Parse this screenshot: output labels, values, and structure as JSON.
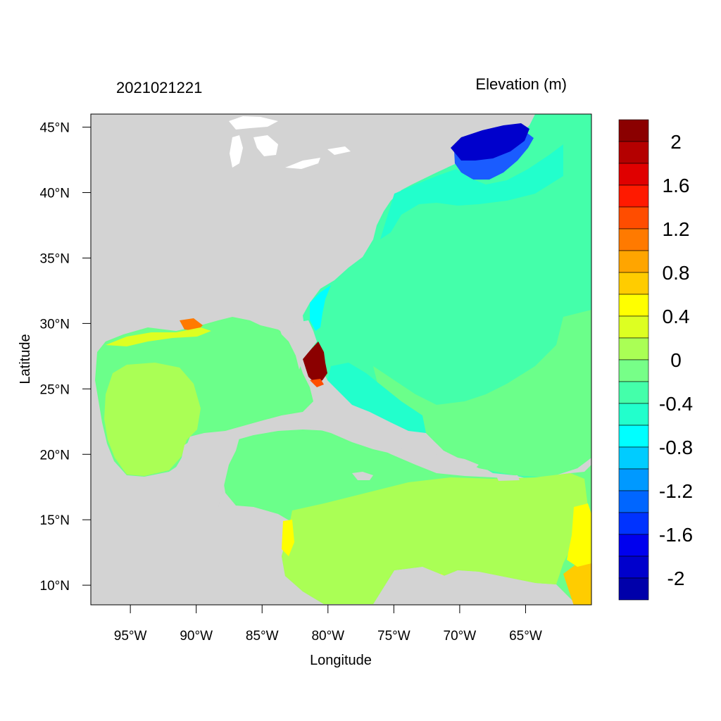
{
  "header": {
    "timestamp": "2021021221",
    "variable_label": "Elevation (m)"
  },
  "axes": {
    "x_label": "Longitude",
    "y_label": "Latitude",
    "x_ticks": [
      "95°W",
      "90°W",
      "85°W",
      "80°W",
      "75°W",
      "70°W",
      "65°W"
    ],
    "y_ticks": [
      "45°N",
      "40°N",
      "35°N",
      "30°N",
      "25°N",
      "20°N",
      "15°N",
      "10°N"
    ]
  },
  "colors": {
    "land": "#d3d3d3",
    "water_default": "#6bff8a"
  },
  "colorbar": {
    "labels": [
      "2",
      "1.6",
      "1.2",
      "0.8",
      "0.4",
      "0",
      "-0.4",
      "-0.8",
      "-1.2",
      "-1.6",
      "-2"
    ],
    "colors": [
      "#8b0000",
      "#b40000",
      "#e00000",
      "#ff1a00",
      "#ff4d00",
      "#ff7a00",
      "#ffa500",
      "#ffcc00",
      "#ffff00",
      "#ddff22",
      "#aaff55",
      "#77ff88",
      "#44ffaa",
      "#22ffcc",
      "#00ffff",
      "#00ccff",
      "#0099ff",
      "#0066ff",
      "#0033ff",
      "#0000ee",
      "#0000cc",
      "#0000aa"
    ]
  },
  "chart_data": {
    "type": "heatmap",
    "title": "Elevation (m)",
    "subtitle": "2021021221",
    "xlabel": "Longitude",
    "ylabel": "Latitude",
    "xlim": [
      -98,
      -60
    ],
    "ylim": [
      8.5,
      46
    ],
    "color_range": [
      -2.2,
      2.2
    ],
    "regions": [
      {
        "area": "Gulf of Maine",
        "value": -2
      },
      {
        "area": "Western Atlantic",
        "value": -0.3
      },
      {
        "area": "Gulf of Mexico",
        "value": 0.1
      },
      {
        "area": "Caribbean Sea",
        "value": 0.2
      },
      {
        "area": "South Florida coast",
        "value": 2
      }
    ]
  }
}
